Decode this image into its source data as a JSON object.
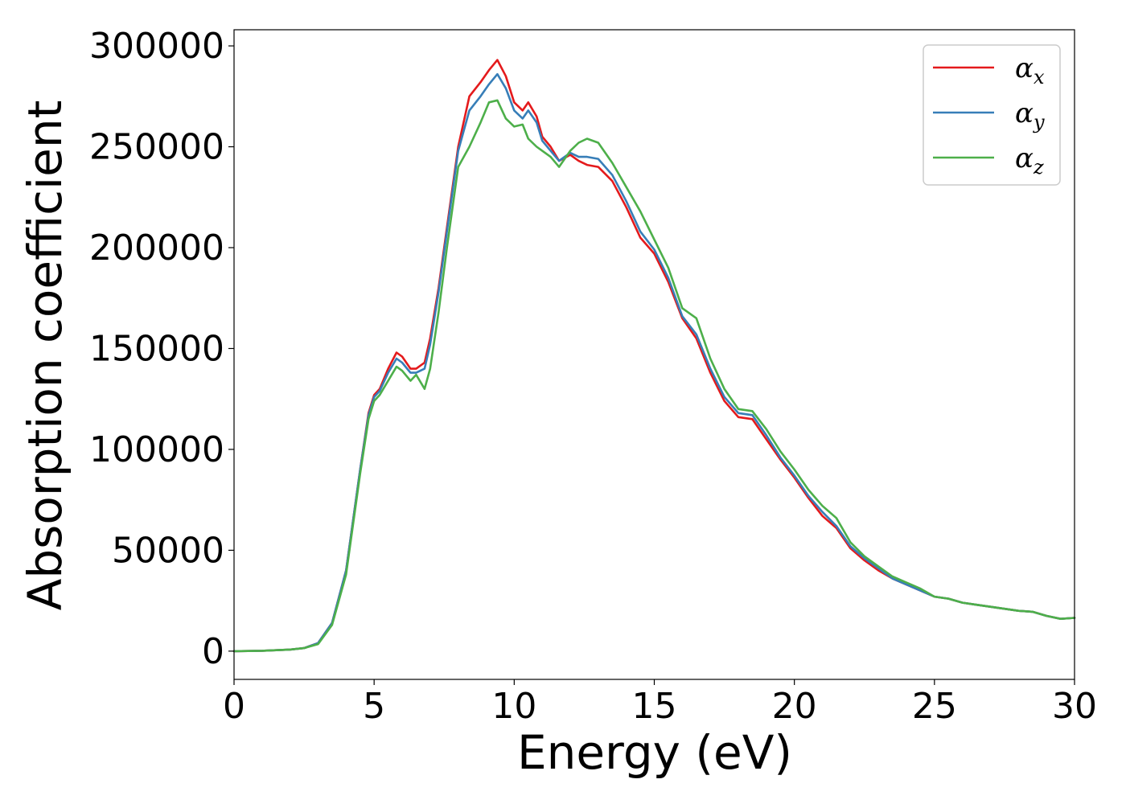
{
  "chart_data": {
    "type": "line",
    "title": "",
    "xlabel": "Energy (eV)",
    "ylabel": "Absorption coefficient",
    "xlim": [
      0,
      30
    ],
    "ylim": [
      -14000,
      308000
    ],
    "xticks": [
      0,
      5,
      10,
      15,
      20,
      25,
      30
    ],
    "xtick_labels": [
      "0",
      "5",
      "10",
      "15",
      "20",
      "25",
      "30"
    ],
    "yticks": [
      0,
      50000,
      100000,
      150000,
      200000,
      250000,
      300000
    ],
    "ytick_labels": [
      "0",
      "50000",
      "100000",
      "150000",
      "200000",
      "250000",
      "300000"
    ],
    "legend_position": "top-right",
    "x": [
      0,
      1,
      2,
      2.5,
      3,
      3.5,
      4,
      4.5,
      4.8,
      5,
      5.2,
      5.5,
      5.8,
      6,
      6.3,
      6.5,
      6.8,
      7,
      7.3,
      7.6,
      8,
      8.4,
      8.8,
      9.1,
      9.4,
      9.7,
      10,
      10.3,
      10.5,
      10.8,
      11,
      11.3,
      11.6,
      12,
      12.3,
      12.6,
      13,
      13.5,
      14,
      14.5,
      15,
      15.5,
      16,
      16.5,
      17,
      17.5,
      18,
      18.5,
      19,
      19.5,
      20,
      20.5,
      21,
      21.5,
      22,
      22.5,
      23,
      23.5,
      24,
      24.5,
      25,
      25.5,
      26,
      26.5,
      27,
      27.5,
      28,
      28.5,
      29,
      29.5,
      30
    ],
    "series": [
      {
        "name": "α_x",
        "label_main": "α",
        "label_sub": "x",
        "color": "#e41a1c",
        "values": [
          0,
          200,
          800,
          1500,
          4000,
          14000,
          40000,
          90000,
          118000,
          127000,
          130000,
          140000,
          148000,
          146000,
          140000,
          140000,
          143000,
          155000,
          180000,
          210000,
          250000,
          275000,
          282000,
          288000,
          293000,
          285000,
          272000,
          268000,
          272000,
          265000,
          255000,
          250000,
          243000,
          246000,
          243000,
          241000,
          240000,
          233000,
          220000,
          205000,
          197000,
          183000,
          165000,
          155000,
          138000,
          124000,
          116000,
          115000,
          105000,
          95000,
          86000,
          76000,
          67000,
          61000,
          51000,
          45000,
          40000,
          36000,
          33000,
          30000,
          27000,
          26000,
          24000,
          23000,
          22000,
          21000,
          20000,
          19500,
          17500,
          16000,
          16500
        ]
      },
      {
        "name": "α_y",
        "label_main": "α",
        "label_sub": "y",
        "color": "#377eb8",
        "values": [
          0,
          200,
          800,
          1500,
          4000,
          14000,
          40000,
          90000,
          117000,
          126000,
          129000,
          138000,
          145000,
          143000,
          138000,
          138000,
          140000,
          152000,
          178000,
          208000,
          248000,
          268000,
          275000,
          281000,
          286000,
          279000,
          268000,
          264000,
          268000,
          262000,
          253000,
          248000,
          243000,
          247000,
          245000,
          245000,
          244000,
          236000,
          223000,
          208000,
          199000,
          185000,
          166000,
          157000,
          140000,
          126000,
          118000,
          117000,
          107000,
          96000,
          87000,
          77000,
          69000,
          62000,
          52000,
          46000,
          41000,
          36000,
          33000,
          30000,
          27000,
          26000,
          24000,
          23000,
          22000,
          21000,
          20000,
          19500,
          17500,
          16000,
          16500
        ]
      },
      {
        "name": "α_z",
        "label_main": "α",
        "label_sub": "z",
        "color": "#4daf4a",
        "values": [
          0,
          200,
          800,
          1500,
          3500,
          13000,
          38000,
          88000,
          115000,
          124000,
          127000,
          134000,
          141000,
          139000,
          134000,
          137000,
          130000,
          140000,
          168000,
          200000,
          240000,
          250000,
          262000,
          272000,
          273000,
          264000,
          260000,
          261000,
          254000,
          250000,
          248000,
          245000,
          240000,
          248000,
          252000,
          254000,
          252000,
          242000,
          230000,
          218000,
          204000,
          190000,
          170000,
          165000,
          145000,
          130000,
          120000,
          119000,
          110000,
          99000,
          90000,
          80000,
          72000,
          66000,
          54000,
          47000,
          42000,
          37000,
          34000,
          31000,
          27000,
          26000,
          24000,
          23000,
          22000,
          21000,
          20000,
          19500,
          17500,
          16000,
          16500
        ]
      }
    ]
  }
}
